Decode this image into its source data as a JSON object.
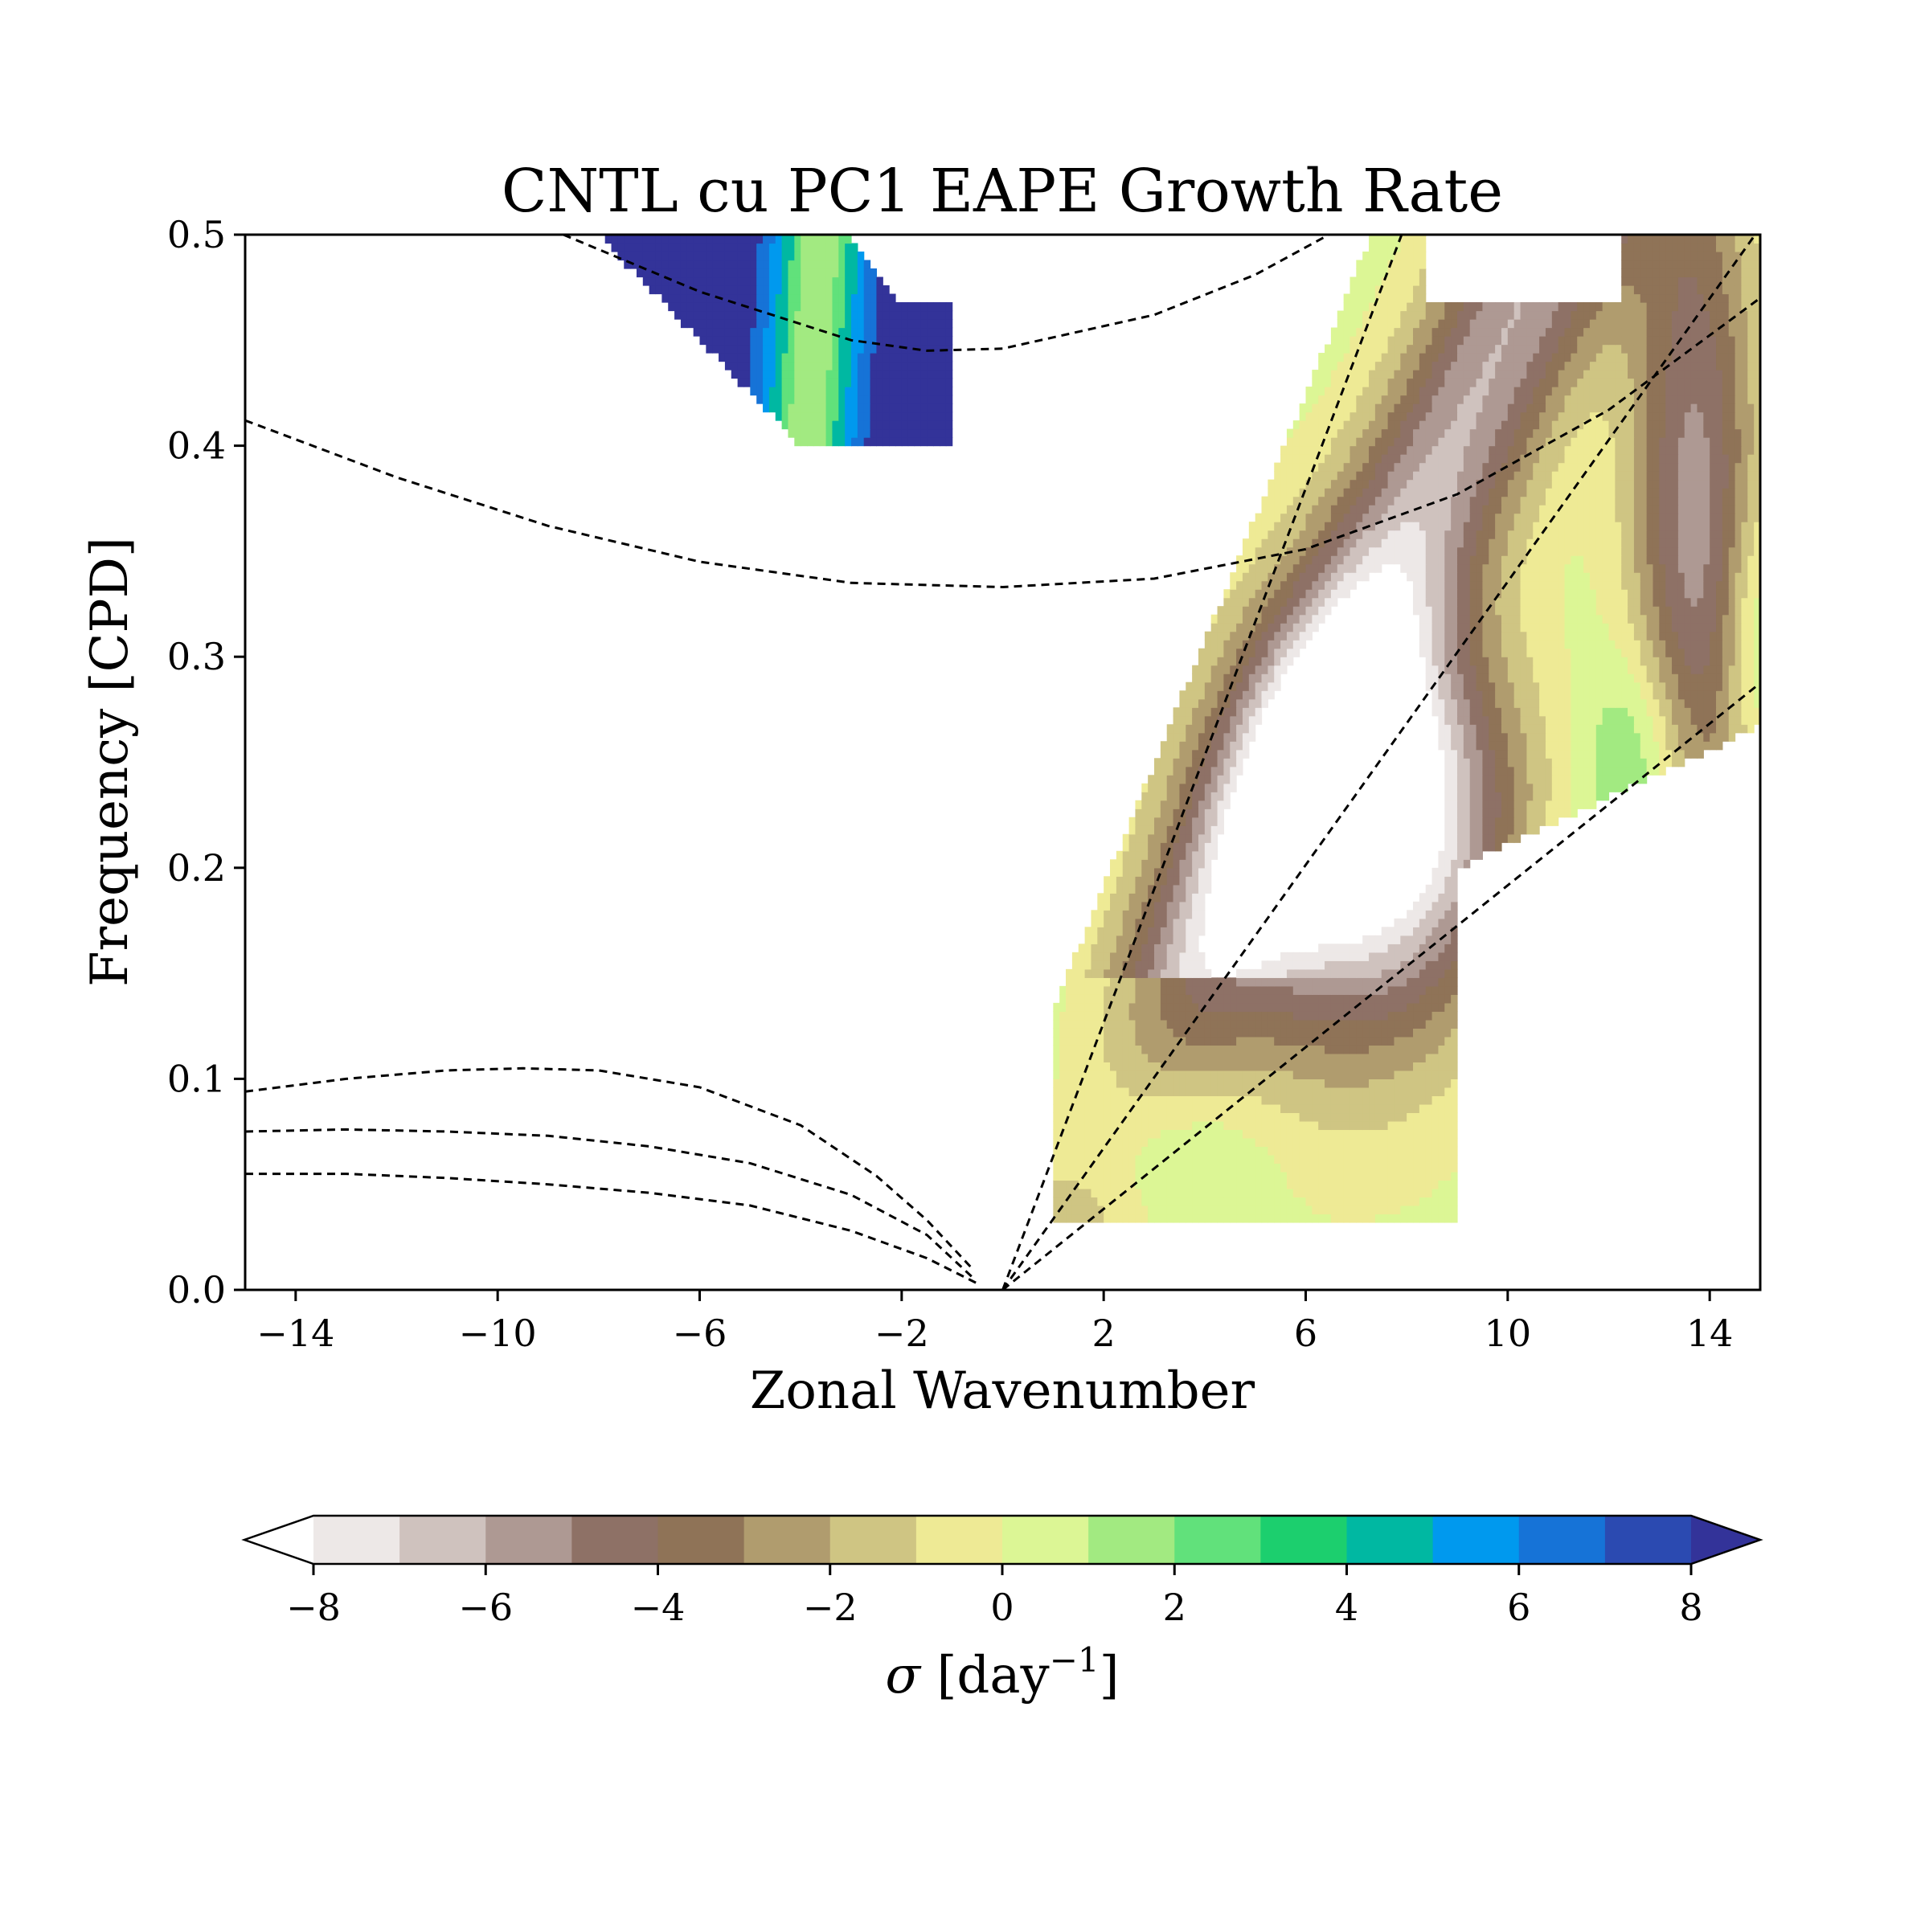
{
  "chart_data": {
    "type": "contour",
    "title": "CNTL cu PC1 EAPE Growth Rate",
    "xlabel": "Zonal Wavenumber",
    "ylabel": "Frequency [CPD]",
    "xlim": [
      -15,
      15
    ],
    "ylim": [
      0,
      0.5
    ],
    "xticks": [
      -14,
      -10,
      -6,
      -2,
      2,
      6,
      10,
      14
    ],
    "xtick_labels": [
      "−14",
      "−10",
      "−6",
      "−2",
      "2",
      "6",
      "10",
      "14"
    ],
    "yticks": [
      0.0,
      0.1,
      0.2,
      0.3,
      0.4,
      0.5
    ],
    "ytick_labels": [
      "0.0",
      "0.1",
      "0.2",
      "0.3",
      "0.4",
      "0.5"
    ],
    "colorbar": {
      "label_prefix": "σ",
      "label_unit_open": " [day",
      "label_unit_sup": "−1",
      "label_unit_close": "]",
      "levels": [
        -8,
        -7,
        -6,
        -5,
        -4,
        -3,
        -2,
        -1,
        0,
        1,
        2,
        3,
        4,
        5,
        6,
        7,
        8
      ],
      "extend": "both",
      "tick_values": [
        -8,
        -6,
        -4,
        -2,
        0,
        2,
        4,
        6,
        8
      ],
      "tick_labels": [
        "−8",
        "−6",
        "−4",
        "−2",
        "0",
        "2",
        "4",
        "6",
        "8"
      ],
      "under_color": "#ffffff",
      "over_color": "#333399",
      "colors": [
        "#ede8e7",
        "#cfc2be",
        "#ae9993",
        "#8e7166",
        "#8f7357",
        "#b09c6e",
        "#cfc583",
        "#eeea95",
        "#dcf695",
        "#a2ea81",
        "#61e17b",
        "#1ccf6e",
        "#00b8a2",
        "#0099ee",
        "#1673d7",
        "#2b4ab1"
      ]
    },
    "regions": [
      {
        "name": "upper-left blob",
        "x_range": [
          -8,
          -1
        ],
        "y_range": [
          0.4,
          0.5
        ],
        "value_range": [
          1,
          8
        ]
      },
      {
        "name": "right wedge",
        "x_range": [
          1,
          15
        ],
        "y_range": [
          0.033,
          0.5
        ],
        "value_range": [
          -8,
          5
        ]
      }
    ],
    "dispersion_curves": [
      {
        "family": "eastward linear",
        "x": [
          0,
          7.9
        ],
        "y": [
          0,
          0.5
        ]
      },
      {
        "family": "eastward linear",
        "x": [
          0,
          14.9
        ],
        "y": [
          0,
          0.5
        ]
      },
      {
        "family": "eastward linear",
        "x": [
          0,
          15
        ],
        "y": [
          0,
          0.2875
        ]
      },
      {
        "family": "rossby",
        "x": [
          -15,
          -13,
          -11,
          -9.5,
          -8,
          -6,
          -4,
          -2.5,
          -1.5,
          -0.6
        ],
        "y": [
          0.094,
          0.1,
          0.104,
          0.105,
          0.104,
          0.096,
          0.078,
          0.054,
          0.033,
          0.01
        ]
      },
      {
        "family": "rossby",
        "x": [
          -15,
          -13,
          -11,
          -9,
          -7,
          -5,
          -3,
          -1.5,
          -0.6
        ],
        "y": [
          0.075,
          0.076,
          0.075,
          0.073,
          0.068,
          0.06,
          0.045,
          0.026,
          0.006
        ]
      },
      {
        "family": "rossby",
        "x": [
          -15,
          -13,
          -11,
          -9,
          -7,
          -5,
          -3,
          -1.5,
          -0.5
        ],
        "y": [
          0.055,
          0.055,
          0.053,
          0.05,
          0.046,
          0.04,
          0.028,
          0.015,
          0.003
        ]
      },
      {
        "family": "inertia-gravity",
        "x": [
          -15,
          -12,
          -9,
          -6,
          -3,
          0,
          3,
          6,
          9,
          12,
          15
        ],
        "y": [
          0.412,
          0.385,
          0.362,
          0.345,
          0.335,
          0.333,
          0.337,
          0.351,
          0.377,
          0.417,
          0.47
        ]
      },
      {
        "family": "inertia-gravity",
        "x": [
          -8.7,
          -6,
          -3,
          -1.5,
          0,
          3,
          5,
          7
        ],
        "y": [
          0.5,
          0.473,
          0.45,
          0.445,
          0.446,
          0.462,
          0.481,
          0.507
        ]
      }
    ]
  }
}
